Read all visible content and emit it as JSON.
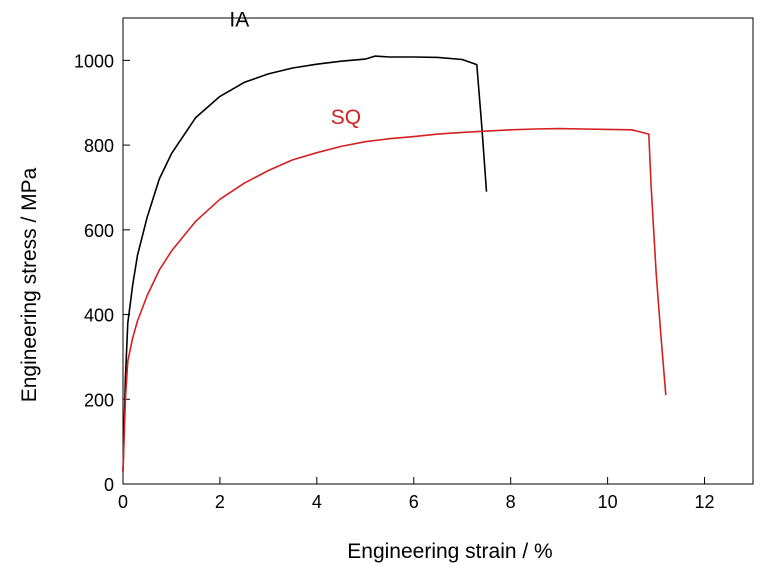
{
  "chart_data": {
    "type": "line",
    "title": "",
    "xlabel": "Engineering strain / %",
    "ylabel": "Engineering stress / MPa",
    "xlim": [
      0,
      13
    ],
    "ylim": [
      0,
      1100
    ],
    "xticks": [
      0,
      2,
      4,
      6,
      8,
      10,
      12
    ],
    "yticks": [
      0,
      200,
      400,
      600,
      800,
      1000
    ],
    "grid": false,
    "series": [
      {
        "name": "IA",
        "color": "#000000",
        "points": [
          [
            0,
            30
          ],
          [
            0.05,
            250
          ],
          [
            0.1,
            380
          ],
          [
            0.2,
            470
          ],
          [
            0.3,
            540
          ],
          [
            0.5,
            630
          ],
          [
            0.75,
            720
          ],
          [
            1.0,
            780
          ],
          [
            1.5,
            865
          ],
          [
            2.0,
            915
          ],
          [
            2.5,
            948
          ],
          [
            3.0,
            968
          ],
          [
            3.5,
            982
          ],
          [
            4.0,
            991
          ],
          [
            4.5,
            998
          ],
          [
            5.0,
            1003
          ],
          [
            5.2,
            1010
          ],
          [
            5.5,
            1008
          ],
          [
            6.0,
            1008
          ],
          [
            6.5,
            1007
          ],
          [
            7.0,
            1002
          ],
          [
            7.3,
            990
          ],
          [
            7.4,
            850
          ],
          [
            7.5,
            690
          ]
        ]
      },
      {
        "name": "SQ",
        "color": "#d42020",
        "points": [
          [
            0,
            30
          ],
          [
            0.05,
            200
          ],
          [
            0.1,
            290
          ],
          [
            0.2,
            345
          ],
          [
            0.3,
            385
          ],
          [
            0.5,
            445
          ],
          [
            0.75,
            505
          ],
          [
            1.0,
            550
          ],
          [
            1.5,
            620
          ],
          [
            2.0,
            672
          ],
          [
            2.5,
            710
          ],
          [
            3.0,
            740
          ],
          [
            3.5,
            765
          ],
          [
            4.0,
            782
          ],
          [
            4.5,
            797
          ],
          [
            5.0,
            808
          ],
          [
            5.5,
            815
          ],
          [
            6.0,
            820
          ],
          [
            6.5,
            826
          ],
          [
            7.0,
            830
          ],
          [
            7.5,
            833
          ],
          [
            8.0,
            836
          ],
          [
            8.5,
            838
          ],
          [
            9.0,
            839
          ],
          [
            9.5,
            838
          ],
          [
            10.0,
            837
          ],
          [
            10.5,
            836
          ],
          [
            10.85,
            826
          ],
          [
            10.9,
            700
          ],
          [
            11.0,
            500
          ],
          [
            11.1,
            350
          ],
          [
            11.2,
            210
          ]
        ]
      }
    ]
  }
}
